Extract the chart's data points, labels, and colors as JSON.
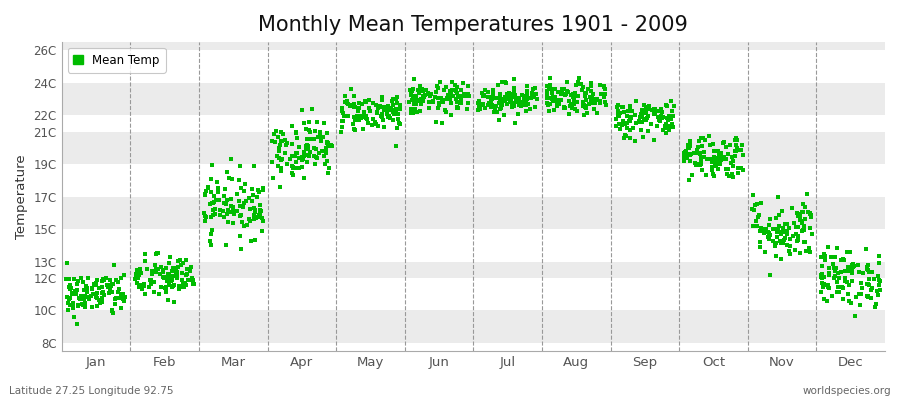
{
  "title": "Monthly Mean Temperatures 1901 - 2009",
  "ylabel": "Temperature",
  "dot_color": "#00BB00",
  "dot_size": 7,
  "ytick_labels": [
    "8C",
    "10C",
    "12C",
    "13C",
    "15C",
    "17C",
    "19C",
    "21C",
    "22C",
    "24C",
    "26C"
  ],
  "ytick_values": [
    8,
    10,
    12,
    13,
    15,
    17,
    19,
    21,
    22,
    24,
    26
  ],
  "ylim": [
    7.5,
    26.5
  ],
  "xlim": [
    -0.5,
    11.5
  ],
  "month_labels": [
    "Jan",
    "Feb",
    "Mar",
    "Apr",
    "May",
    "Jun",
    "Jul",
    "Aug",
    "Sep",
    "Oct",
    "Nov",
    "Dec"
  ],
  "month_tick_positions": [
    0,
    1,
    2,
    3,
    4,
    5,
    6,
    7,
    8,
    9,
    10,
    11
  ],
  "vline_positions": [
    0.5,
    1.5,
    2.5,
    3.5,
    4.5,
    5.5,
    6.5,
    7.5,
    8.5,
    9.5,
    10.5
  ],
  "legend_label": "Mean Temp",
  "footnote_left": "Latitude 27.25 Longitude 92.75",
  "footnote_right": "worldspecies.org",
  "bg_color": "#FFFFFF",
  "plot_bg_color": "#EBEBEB",
  "alt_bg_color": "#FFFFFF",
  "title_fontsize": 15,
  "monthly_means": [
    11.0,
    12.0,
    16.5,
    20.0,
    22.2,
    23.0,
    23.0,
    23.0,
    21.8,
    19.5,
    15.0,
    12.0
  ],
  "monthly_stds": [
    0.7,
    0.7,
    1.0,
    0.9,
    0.6,
    0.5,
    0.5,
    0.5,
    0.6,
    0.7,
    1.0,
    0.9
  ],
  "n_years": 109,
  "band_colors": [
    "#EBEBEB",
    "#FFFFFF",
    "#EBEBEB",
    "#FFFFFF",
    "#EBEBEB",
    "#FFFFFF",
    "#EBEBEB",
    "#FFFFFF",
    "#EBEBEB",
    "#FFFFFF",
    "#EBEBEB"
  ],
  "band_edges": [
    8,
    10,
    12,
    13,
    15,
    17,
    19,
    21,
    22,
    24,
    26,
    27
  ]
}
